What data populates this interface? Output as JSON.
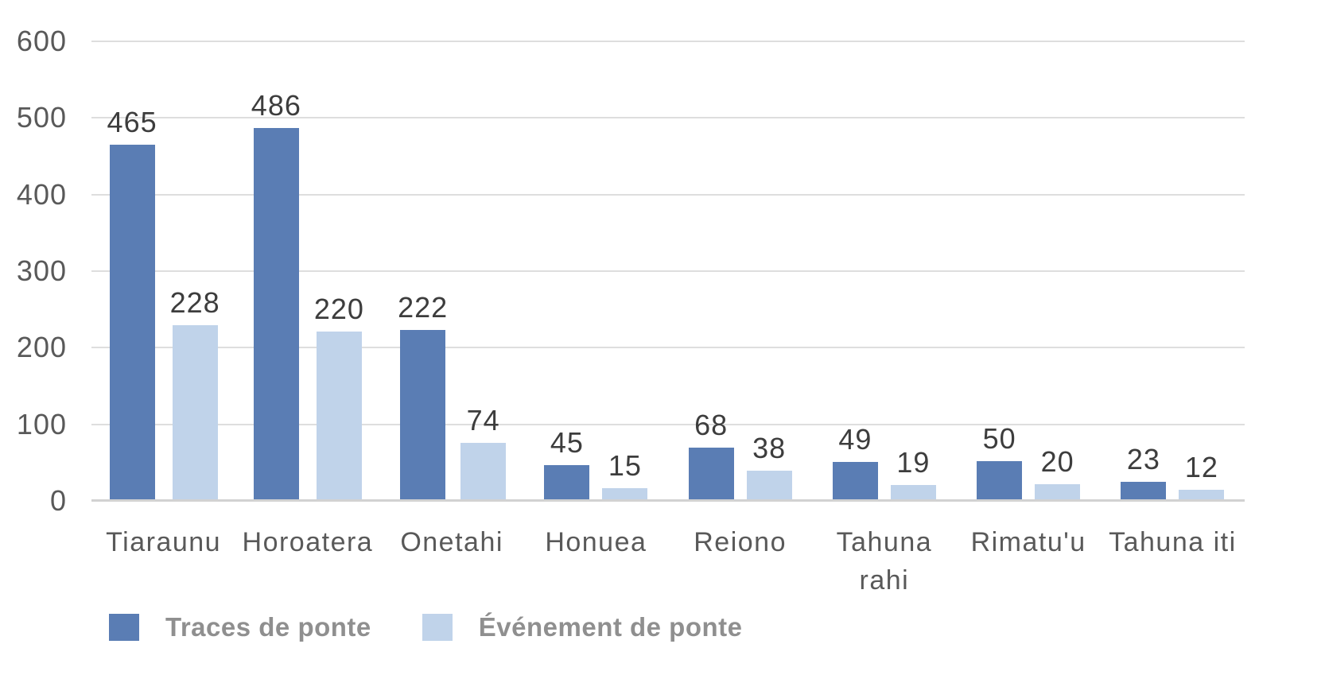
{
  "chart_data": {
    "type": "bar",
    "categories": [
      "Tiaraunu",
      "Horoatera",
      "Onetahi",
      "Honuea",
      "Reiono",
      "Tahuna\nrahi",
      "Rimatu'u",
      "Tahuna iti"
    ],
    "series": [
      {
        "name": "Traces de ponte",
        "color": "#5a7db4",
        "values": [
          465,
          486,
          222,
          45,
          68,
          49,
          50,
          23
        ]
      },
      {
        "name": "Événement de ponte",
        "color": "#c0d3ea",
        "values": [
          228,
          220,
          74,
          15,
          38,
          19,
          20,
          12
        ]
      }
    ],
    "y_axis": {
      "min": 0,
      "max": 600,
      "step": 100,
      "tick_labels": [
        "600",
        "500",
        "400",
        "300",
        "200",
        "100",
        "0"
      ]
    },
    "grid": true,
    "legend_position": "bottom",
    "value_labels_position": "outside-end"
  },
  "colors": {
    "background": "#ffffff",
    "gridline": "#dedede",
    "baseline": "#d2d2d2",
    "axis_text": "#595959",
    "value_label_text": "#3d3d3d",
    "legend_text": "#8f8f8f",
    "series_1": "#5a7db4",
    "series_2": "#c0d3ea"
  }
}
